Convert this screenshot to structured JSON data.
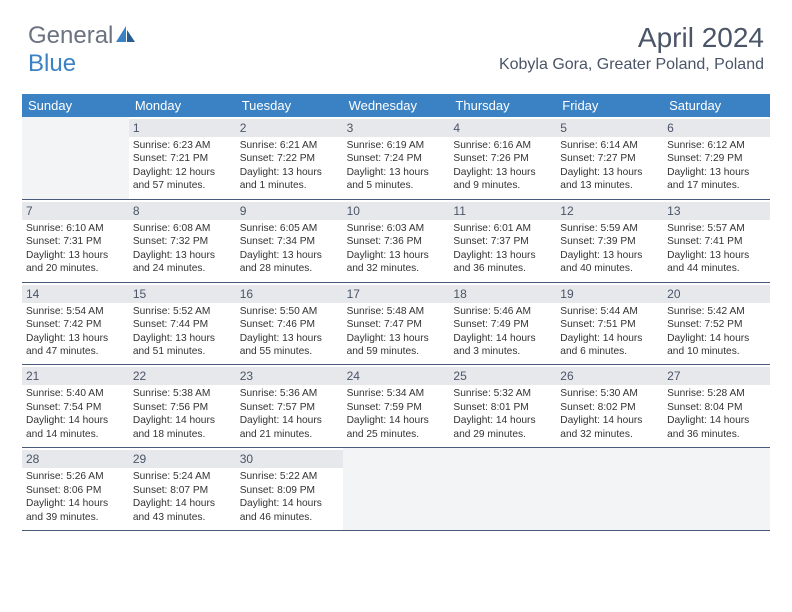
{
  "brand": {
    "part1": "General",
    "part2": "Blue"
  },
  "title": "April 2024",
  "location": "Kobyla Gora, Greater Poland, Poland",
  "colors": {
    "header_bg": "#3b82c4",
    "daynum_bg": "#e6e8ec",
    "empty_bg": "#f3f4f6",
    "row_border": "#4a5a7a",
    "text_muted": "#4a5568",
    "body_text": "#333333"
  },
  "typography": {
    "title_fontsize": 28,
    "location_fontsize": 16,
    "dow_fontsize": 13,
    "daynum_fontsize": 12,
    "info_fontsize": 10.2
  },
  "dow": [
    "Sunday",
    "Monday",
    "Tuesday",
    "Wednesday",
    "Thursday",
    "Friday",
    "Saturday"
  ],
  "weeks": [
    [
      {
        "num": "",
        "sunrise": "",
        "sunset": "",
        "daylight": "",
        "empty": true
      },
      {
        "num": "1",
        "sunrise": "Sunrise: 6:23 AM",
        "sunset": "Sunset: 7:21 PM",
        "daylight": "Daylight: 12 hours and 57 minutes."
      },
      {
        "num": "2",
        "sunrise": "Sunrise: 6:21 AM",
        "sunset": "Sunset: 7:22 PM",
        "daylight": "Daylight: 13 hours and 1 minutes."
      },
      {
        "num": "3",
        "sunrise": "Sunrise: 6:19 AM",
        "sunset": "Sunset: 7:24 PM",
        "daylight": "Daylight: 13 hours and 5 minutes."
      },
      {
        "num": "4",
        "sunrise": "Sunrise: 6:16 AM",
        "sunset": "Sunset: 7:26 PM",
        "daylight": "Daylight: 13 hours and 9 minutes."
      },
      {
        "num": "5",
        "sunrise": "Sunrise: 6:14 AM",
        "sunset": "Sunset: 7:27 PM",
        "daylight": "Daylight: 13 hours and 13 minutes."
      },
      {
        "num": "6",
        "sunrise": "Sunrise: 6:12 AM",
        "sunset": "Sunset: 7:29 PM",
        "daylight": "Daylight: 13 hours and 17 minutes."
      }
    ],
    [
      {
        "num": "7",
        "sunrise": "Sunrise: 6:10 AM",
        "sunset": "Sunset: 7:31 PM",
        "daylight": "Daylight: 13 hours and 20 minutes."
      },
      {
        "num": "8",
        "sunrise": "Sunrise: 6:08 AM",
        "sunset": "Sunset: 7:32 PM",
        "daylight": "Daylight: 13 hours and 24 minutes."
      },
      {
        "num": "9",
        "sunrise": "Sunrise: 6:05 AM",
        "sunset": "Sunset: 7:34 PM",
        "daylight": "Daylight: 13 hours and 28 minutes."
      },
      {
        "num": "10",
        "sunrise": "Sunrise: 6:03 AM",
        "sunset": "Sunset: 7:36 PM",
        "daylight": "Daylight: 13 hours and 32 minutes."
      },
      {
        "num": "11",
        "sunrise": "Sunrise: 6:01 AM",
        "sunset": "Sunset: 7:37 PM",
        "daylight": "Daylight: 13 hours and 36 minutes."
      },
      {
        "num": "12",
        "sunrise": "Sunrise: 5:59 AM",
        "sunset": "Sunset: 7:39 PM",
        "daylight": "Daylight: 13 hours and 40 minutes."
      },
      {
        "num": "13",
        "sunrise": "Sunrise: 5:57 AM",
        "sunset": "Sunset: 7:41 PM",
        "daylight": "Daylight: 13 hours and 44 minutes."
      }
    ],
    [
      {
        "num": "14",
        "sunrise": "Sunrise: 5:54 AM",
        "sunset": "Sunset: 7:42 PM",
        "daylight": "Daylight: 13 hours and 47 minutes."
      },
      {
        "num": "15",
        "sunrise": "Sunrise: 5:52 AM",
        "sunset": "Sunset: 7:44 PM",
        "daylight": "Daylight: 13 hours and 51 minutes."
      },
      {
        "num": "16",
        "sunrise": "Sunrise: 5:50 AM",
        "sunset": "Sunset: 7:46 PM",
        "daylight": "Daylight: 13 hours and 55 minutes."
      },
      {
        "num": "17",
        "sunrise": "Sunrise: 5:48 AM",
        "sunset": "Sunset: 7:47 PM",
        "daylight": "Daylight: 13 hours and 59 minutes."
      },
      {
        "num": "18",
        "sunrise": "Sunrise: 5:46 AM",
        "sunset": "Sunset: 7:49 PM",
        "daylight": "Daylight: 14 hours and 3 minutes."
      },
      {
        "num": "19",
        "sunrise": "Sunrise: 5:44 AM",
        "sunset": "Sunset: 7:51 PM",
        "daylight": "Daylight: 14 hours and 6 minutes."
      },
      {
        "num": "20",
        "sunrise": "Sunrise: 5:42 AM",
        "sunset": "Sunset: 7:52 PM",
        "daylight": "Daylight: 14 hours and 10 minutes."
      }
    ],
    [
      {
        "num": "21",
        "sunrise": "Sunrise: 5:40 AM",
        "sunset": "Sunset: 7:54 PM",
        "daylight": "Daylight: 14 hours and 14 minutes."
      },
      {
        "num": "22",
        "sunrise": "Sunrise: 5:38 AM",
        "sunset": "Sunset: 7:56 PM",
        "daylight": "Daylight: 14 hours and 18 minutes."
      },
      {
        "num": "23",
        "sunrise": "Sunrise: 5:36 AM",
        "sunset": "Sunset: 7:57 PM",
        "daylight": "Daylight: 14 hours and 21 minutes."
      },
      {
        "num": "24",
        "sunrise": "Sunrise: 5:34 AM",
        "sunset": "Sunset: 7:59 PM",
        "daylight": "Daylight: 14 hours and 25 minutes."
      },
      {
        "num": "25",
        "sunrise": "Sunrise: 5:32 AM",
        "sunset": "Sunset: 8:01 PM",
        "daylight": "Daylight: 14 hours and 29 minutes."
      },
      {
        "num": "26",
        "sunrise": "Sunrise: 5:30 AM",
        "sunset": "Sunset: 8:02 PM",
        "daylight": "Daylight: 14 hours and 32 minutes."
      },
      {
        "num": "27",
        "sunrise": "Sunrise: 5:28 AM",
        "sunset": "Sunset: 8:04 PM",
        "daylight": "Daylight: 14 hours and 36 minutes."
      }
    ],
    [
      {
        "num": "28",
        "sunrise": "Sunrise: 5:26 AM",
        "sunset": "Sunset: 8:06 PM",
        "daylight": "Daylight: 14 hours and 39 minutes."
      },
      {
        "num": "29",
        "sunrise": "Sunrise: 5:24 AM",
        "sunset": "Sunset: 8:07 PM",
        "daylight": "Daylight: 14 hours and 43 minutes."
      },
      {
        "num": "30",
        "sunrise": "Sunrise: 5:22 AM",
        "sunset": "Sunset: 8:09 PM",
        "daylight": "Daylight: 14 hours and 46 minutes."
      },
      {
        "num": "",
        "sunrise": "",
        "sunset": "",
        "daylight": "",
        "empty": true
      },
      {
        "num": "",
        "sunrise": "",
        "sunset": "",
        "daylight": "",
        "empty": true
      },
      {
        "num": "",
        "sunrise": "",
        "sunset": "",
        "daylight": "",
        "empty": true
      },
      {
        "num": "",
        "sunrise": "",
        "sunset": "",
        "daylight": "",
        "empty": true
      }
    ]
  ]
}
